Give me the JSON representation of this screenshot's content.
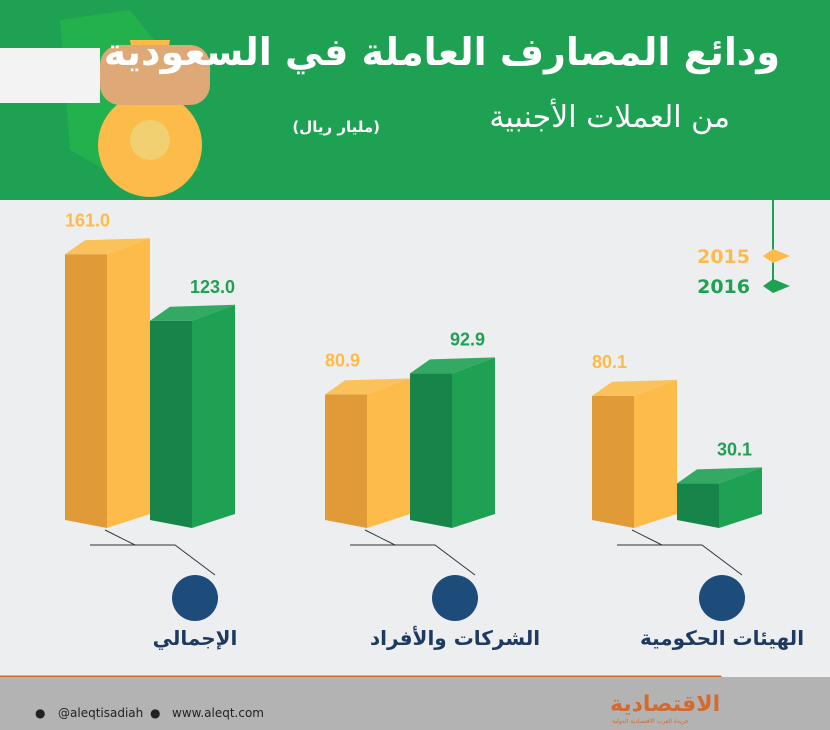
{
  "header": {
    "title": "ودائع المصارف العاملة في السعودية",
    "subtitle": "من العملات الأجنبية",
    "unit": "(مليار ريال)"
  },
  "chart_data": {
    "type": "bar",
    "title": "ودائع المصارف العاملة في السعودية من العملات الأجنبية",
    "unit": "مليار ريال",
    "categories": [
      "الإجمالي",
      "الشركات والأفراد",
      "الهيئات الحكومية"
    ],
    "series": [
      {
        "name": "2015",
        "values": [
          161.0,
          80.9,
          80.1
        ],
        "color": "#fdbb4a",
        "dark": "#e09a38"
      },
      {
        "name": "2016",
        "values": [
          123.0,
          92.9,
          30.1
        ],
        "color": "#1fa153",
        "dark": "#17854a"
      }
    ],
    "legend": "top-right",
    "icons": [
      "safe-icon",
      "briefcase-icon",
      "saudi-emblem-icon"
    ],
    "labels": [
      "161.0",
      "123.0",
      "80.9",
      "92.9",
      "80.1",
      "30.1"
    ]
  },
  "footer": {
    "twitter": "@aleqtisadiah",
    "website": "www.aleqt.com",
    "logo": "الاقتصادية",
    "logo_sub": "جريدة العرب الاقتصادية الدولية"
  }
}
